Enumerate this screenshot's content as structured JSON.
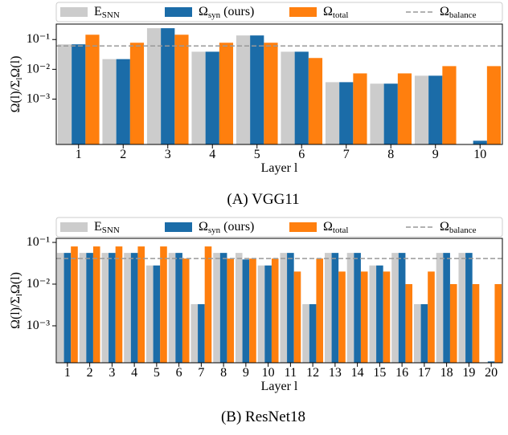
{
  "chart_data": [
    {
      "type": "bar",
      "caption": "(A) VGG11",
      "xlabel": "Layer l",
      "ylabel": "Ω(l)/Σ_{l}Ω(l)",
      "log_y": true,
      "categories": [
        "1",
        "2",
        "3",
        "4",
        "5",
        "6",
        "7",
        "8",
        "9",
        "10"
      ],
      "series": [
        {
          "name": "E_{SNN}",
          "color": "#cccccc",
          "values": [
            0.069,
            0.022,
            0.24,
            0.039,
            0.137,
            0.039,
            0.0037,
            0.0033,
            0.0061,
            null
          ]
        },
        {
          "name": "Ω_{syn} (ours)",
          "color": "#1b6ca8",
          "values": [
            0.069,
            0.022,
            0.24,
            0.039,
            0.137,
            0.039,
            0.0037,
            0.0033,
            0.0061,
            4e-05
          ]
        },
        {
          "name": "Ω_{total}",
          "color": "#ff7f0e",
          "values": [
            0.145,
            0.078,
            0.145,
            0.078,
            0.078,
            0.024,
            0.0073,
            0.0073,
            0.0128,
            0.0128
          ]
        }
      ],
      "reference_line": {
        "name": "Ω_{balance}",
        "value": 0.061,
        "color": "#999999"
      },
      "ylim": [
        3e-05,
        0.33
      ],
      "yticks": [
        {
          "value": 0.001,
          "label": "10⁻³"
        },
        {
          "value": 0.01,
          "label": "10⁻²"
        },
        {
          "value": 0.1,
          "label": "10⁻¹"
        }
      ]
    },
    {
      "type": "bar",
      "caption": "(B) ResNet18",
      "xlabel": "Layer l",
      "ylabel": "Ω(l)/Σ_{l}Ω(l)",
      "log_y": true,
      "categories": [
        "1",
        "2",
        "3",
        "4",
        "5",
        "6",
        "7",
        "8",
        "9",
        "10",
        "11",
        "12",
        "13",
        "14",
        "15",
        "16",
        "17",
        "18",
        "19",
        "20"
      ],
      "series": [
        {
          "name": "E_{SNN}",
          "color": "#cccccc",
          "values": [
            0.056,
            0.056,
            0.056,
            0.056,
            0.028,
            0.056,
            0.0033,
            0.056,
            0.056,
            0.028,
            0.056,
            0.0033,
            0.056,
            0.056,
            0.028,
            0.056,
            0.0033,
            0.056,
            0.056,
            null
          ]
        },
        {
          "name": "Ω_{syn} (ours)",
          "color": "#1b6ca8",
          "values": [
            0.056,
            0.056,
            0.056,
            0.056,
            0.028,
            0.056,
            0.0033,
            0.056,
            0.039,
            0.028,
            0.056,
            0.0033,
            0.056,
            0.056,
            0.028,
            0.056,
            0.0033,
            0.056,
            0.056,
            0.00014
          ]
        },
        {
          "name": "Ω_{total}",
          "color": "#ff7f0e",
          "values": [
            0.08,
            0.08,
            0.08,
            0.08,
            0.08,
            0.041,
            0.08,
            0.041,
            0.041,
            0.041,
            0.02,
            0.041,
            0.02,
            0.02,
            0.02,
            0.01,
            0.02,
            0.01,
            0.01,
            0.01
          ]
        }
      ],
      "reference_line": {
        "name": "Ω_{balance}",
        "value": 0.041,
        "color": "#999999"
      },
      "ylim": [
        0.00013,
        0.125
      ],
      "yticks": [
        {
          "value": 0.001,
          "label": "10⁻³"
        },
        {
          "value": 0.01,
          "label": "10⁻²"
        },
        {
          "value": 0.1,
          "label": "10⁻¹"
        }
      ]
    }
  ]
}
